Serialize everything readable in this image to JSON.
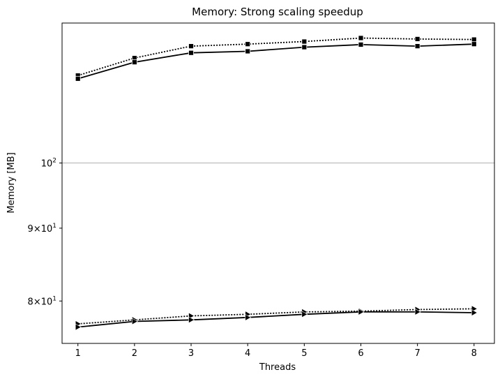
{
  "chart_data": {
    "type": "line",
    "title": "Memory:  Strong scaling speedup",
    "xlabel": "Threads",
    "ylabel": "Memory  [MB]",
    "yscale": "log",
    "x": [
      1,
      2,
      3,
      4,
      5,
      6,
      7,
      8
    ],
    "xlim": [
      0.72,
      8.36
    ],
    "ylim": [
      74.7,
      125.4
    ],
    "xticks": [
      "1",
      "2",
      "3",
      "4",
      "5",
      "6",
      "7",
      "8"
    ],
    "yticks": [
      {
        "value": 80,
        "mantissa": "8",
        "exponent": "1"
      },
      {
        "value": 90,
        "mantissa": "9",
        "exponent": "1"
      },
      {
        "value": 100,
        "mantissa": "",
        "exponent": "2"
      }
    ],
    "grid_lines": [
      100
    ],
    "grid_color": "#b0b0b0",
    "series": [
      {
        "marker": "square",
        "linestyle": "dotted",
        "color": "#000000",
        "values": [
          115.2,
          118.5,
          120.8,
          121.2,
          121.7,
          122.4,
          122.2,
          122.1
        ]
      },
      {
        "marker": "square",
        "linestyle": "solid",
        "color": "#000000",
        "values": [
          114.6,
          117.7,
          119.5,
          119.8,
          120.6,
          121.1,
          120.8,
          121.2
        ]
      },
      {
        "marker": "triangle-right",
        "linestyle": "dotted",
        "color": "#000000",
        "values": [
          77.1,
          77.6,
          78.1,
          78.3,
          78.6,
          78.7,
          78.9,
          79.0
        ]
      },
      {
        "marker": "triangle-right",
        "linestyle": "solid",
        "color": "#000000",
        "values": [
          76.7,
          77.4,
          77.6,
          77.9,
          78.3,
          78.6,
          78.6,
          78.5
        ]
      }
    ]
  }
}
